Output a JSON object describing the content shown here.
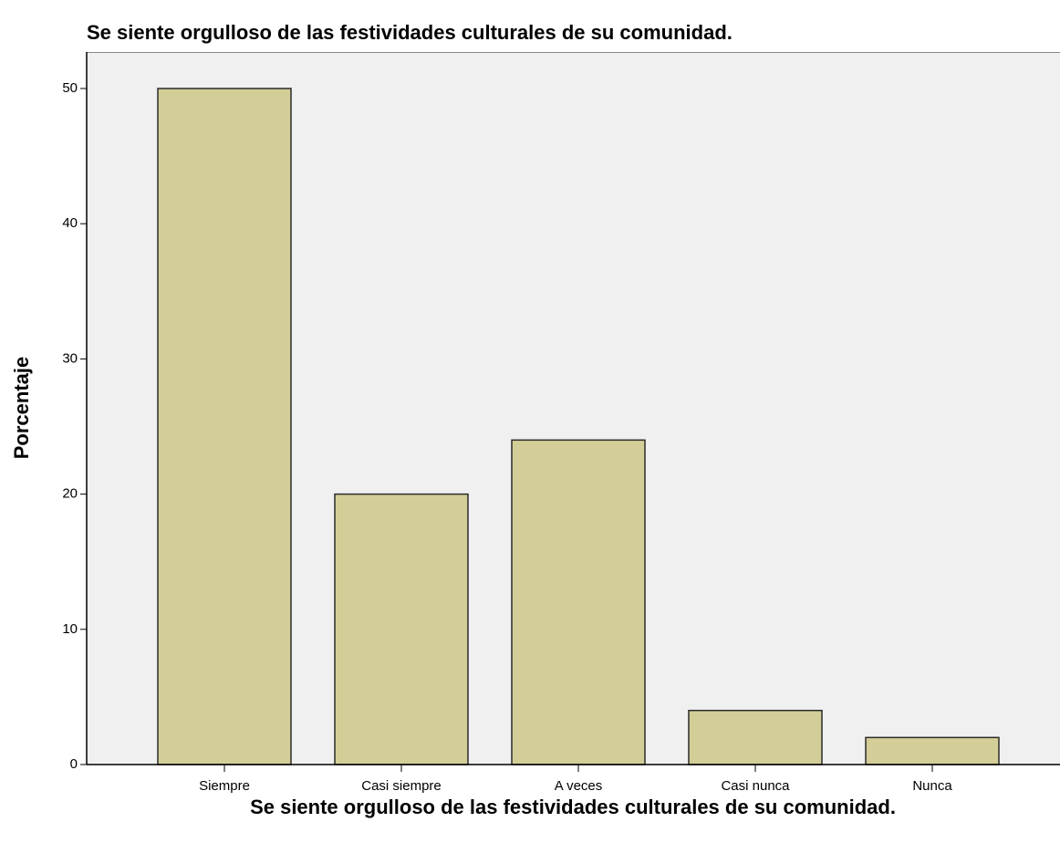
{
  "chart_data": {
    "type": "bar",
    "title": "Se siente orgulloso de las festividades culturales de su comunidad.",
    "x_label": "Se siente orgulloso de las festividades culturales de su comunidad.",
    "y_label": "Porcentaje",
    "categories": [
      "Siempre",
      "Casi siempre",
      "A veces",
      "Casi nunca",
      "Nunca"
    ],
    "values": [
      50,
      20,
      24,
      4,
      2
    ],
    "color": "#d3ce97",
    "ylim": [
      0,
      52.7
    ],
    "yticks": [
      0,
      10,
      20,
      30,
      40,
      50
    ],
    "grid": false
  }
}
